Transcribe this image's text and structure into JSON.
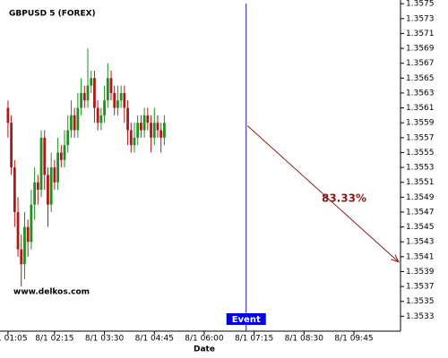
{
  "chart_data": {
    "type": "candlestick",
    "title": "GBPUSD 5 (FOREX)",
    "xlabel": "Date",
    "watermark": "www.delkos.com",
    "x": [
      65,
      70,
      75,
      80,
      85,
      90,
      95,
      100,
      105,
      110,
      115,
      120,
      125,
      130,
      135,
      140,
      145,
      150,
      155,
      160,
      165,
      170,
      175,
      180,
      185,
      190,
      195,
      200,
      205,
      210,
      215,
      220,
      225,
      230,
      235,
      240,
      245,
      250,
      255,
      260,
      265,
      270,
      275,
      280,
      285,
      290,
      295,
      300
    ],
    "open": [
      1.3561,
      1.3559,
      1.3553,
      1.3547,
      1.3542,
      1.354,
      1.3545,
      1.3543,
      1.3548,
      1.3551,
      1.355,
      1.3557,
      1.3552,
      1.3548,
      1.3553,
      1.3551,
      1.3555,
      1.3554,
      1.3556,
      1.3558,
      1.356,
      1.3558,
      1.3561,
      1.3563,
      1.3562,
      1.3564,
      1.3565,
      1.3561,
      1.3559,
      1.356,
      1.3562,
      1.3565,
      1.3563,
      1.3561,
      1.3562,
      1.3563,
      1.3561,
      1.3558,
      1.3556,
      1.3557,
      1.3559,
      1.3558,
      1.356,
      1.3559,
      1.3557,
      1.3559,
      1.3558,
      1.3557
    ],
    "high": [
      1.3562,
      1.356,
      1.3554,
      1.3549,
      1.3544,
      1.3547,
      1.3546,
      1.355,
      1.3553,
      1.3552,
      1.3558,
      1.3558,
      1.3553,
      1.3555,
      1.3554,
      1.3557,
      1.3556,
      1.3558,
      1.356,
      1.3562,
      1.3561,
      1.3563,
      1.3565,
      1.3564,
      1.3569,
      1.3566,
      1.3566,
      1.3562,
      1.3561,
      1.3564,
      1.3567,
      1.3566,
      1.3564,
      1.3564,
      1.3564,
      1.3564,
      1.3562,
      1.3559,
      1.3559,
      1.356,
      1.356,
      1.3561,
      1.3561,
      1.356,
      1.3561,
      1.356,
      1.3559,
      1.356
    ],
    "low": [
      1.3557,
      1.3552,
      1.3545,
      1.3541,
      1.3537,
      1.3538,
      1.3541,
      1.3542,
      1.3546,
      1.3548,
      1.3549,
      1.355,
      1.3545,
      1.3547,
      1.355,
      1.355,
      1.3553,
      1.3553,
      1.3555,
      1.3557,
      1.3557,
      1.3557,
      1.356,
      1.3561,
      1.3561,
      1.3563,
      1.3559,
      1.3558,
      1.3558,
      1.3559,
      1.3561,
      1.3562,
      1.356,
      1.356,
      1.3561,
      1.3559,
      1.3556,
      1.3555,
      1.3555,
      1.3556,
      1.3557,
      1.3557,
      1.3558,
      1.3555,
      1.3556,
      1.3557,
      1.3555,
      1.3556
    ],
    "close": [
      1.3559,
      1.3553,
      1.3547,
      1.3542,
      1.354,
      1.3545,
      1.3543,
      1.3548,
      1.3551,
      1.355,
      1.3557,
      1.3552,
      1.3548,
      1.3553,
      1.3551,
      1.3555,
      1.3554,
      1.3556,
      1.3558,
      1.356,
      1.3558,
      1.3561,
      1.3563,
      1.3562,
      1.3564,
      1.3565,
      1.3561,
      1.3559,
      1.356,
      1.3562,
      1.3565,
      1.3563,
      1.3561,
      1.3562,
      1.3563,
      1.3561,
      1.3558,
      1.3556,
      1.3557,
      1.3559,
      1.3558,
      1.356,
      1.3559,
      1.3557,
      1.3559,
      1.3558,
      1.3557,
      1.3559
    ],
    "up_color": "#1f8f1f",
    "down_color": "#b01818",
    "xlim": [
      53,
      655
    ],
    "ylim": [
      1.3531,
      1.35755
    ],
    "xticks": [
      {
        "value": 65,
        "label": "8/1 01:05"
      },
      {
        "value": 135,
        "label": "8/1 02:15"
      },
      {
        "value": 210,
        "label": "8/1 03:30"
      },
      {
        "value": 285,
        "label": "8/1 04:45"
      },
      {
        "value": 360,
        "label": "8/1 06:00"
      },
      {
        "value": 435,
        "label": "8/1 07:15"
      },
      {
        "value": 510,
        "label": "8/1 08:30"
      },
      {
        "value": 585,
        "label": "8/1 09:45"
      }
    ],
    "yticks": [
      1.3533,
      1.3535,
      1.3537,
      1.3539,
      1.3541,
      1.3543,
      1.3545,
      1.3547,
      1.3549,
      1.3551,
      1.3553,
      1.3555,
      1.3557,
      1.3559,
      1.3561,
      1.3563,
      1.3565,
      1.3567,
      1.3569,
      1.3571,
      1.3573,
      1.3575
    ],
    "event": {
      "x": 423,
      "label": "Event",
      "color": "#1a1a8c"
    },
    "arrow": {
      "x": [
        425,
        652
      ],
      "y": [
        1.35586,
        1.35403
      ],
      "label": "83.33%",
      "color": "#8b1a1a"
    },
    "grid": false
  }
}
